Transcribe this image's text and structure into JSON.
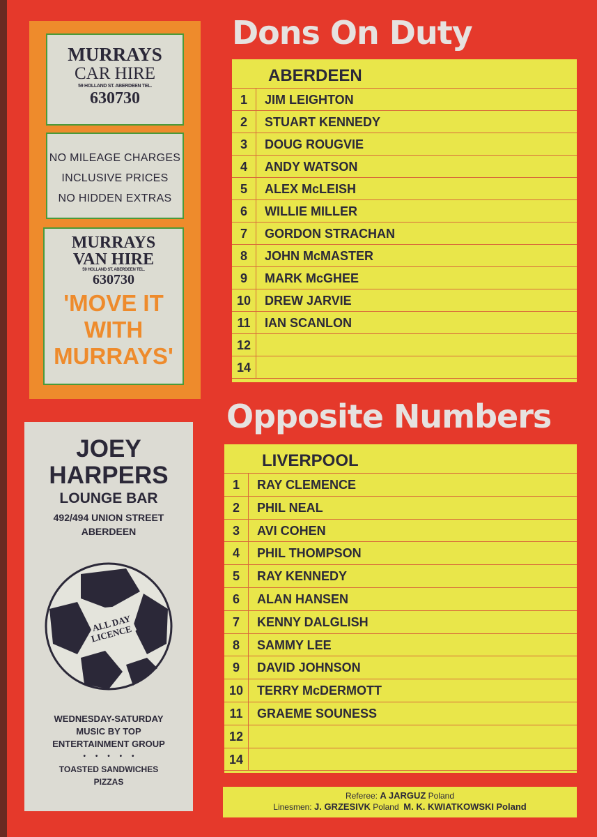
{
  "murrays_ad": {
    "car_title": "MURRAYS",
    "car_sub": "CAR HIRE",
    "address": "59 HOLLAND ST. ABERDEEN TEL.",
    "phone": "630730",
    "features": [
      "NO MILEAGE CHARGES",
      "INCLUSIVE PRICES",
      "NO HIDDEN EXTRAS"
    ],
    "van_title": "MURRAYS",
    "van_sub": "VAN HIRE",
    "van_address": "59 HOLLAND ST. ABERDEEN TEL.",
    "van_phone": "630730",
    "slogan": [
      "'MOVE IT",
      "WITH",
      "MURRAYS'"
    ]
  },
  "joey_ad": {
    "name1": "JOEY",
    "name2": "HARPERS",
    "type": "LOUNGE BAR",
    "address1": "492/494 UNION STREET",
    "address2": "ABERDEEN",
    "ball_text1": "ALL DAY",
    "ball_text2": "LICENCE",
    "lines": [
      "WEDNESDAY-SATURDAY",
      "MUSIC BY TOP",
      "ENTERTAINMENT GROUP"
    ],
    "dots": "•     •     •     •     •",
    "food": [
      "TOASTED SANDWICHES",
      "PIZZAS"
    ]
  },
  "home": {
    "heading": "Dons On Duty",
    "team": "ABERDEEN",
    "players": [
      {
        "n": "1",
        "name": "JIM LEIGHTON"
      },
      {
        "n": "2",
        "name": "STUART KENNEDY"
      },
      {
        "n": "3",
        "name": "DOUG ROUGVIE"
      },
      {
        "n": "4",
        "name": "ANDY WATSON"
      },
      {
        "n": "5",
        "name": "ALEX McLEISH"
      },
      {
        "n": "6",
        "name": "WILLIE MILLER"
      },
      {
        "n": "7",
        "name": "GORDON STRACHAN"
      },
      {
        "n": "8",
        "name": "JOHN McMASTER"
      },
      {
        "n": "9",
        "name": "MARK McGHEE"
      },
      {
        "n": "10",
        "name": "DREW JARVIE"
      },
      {
        "n": "11",
        "name": "IAN SCANLON"
      },
      {
        "n": "12",
        "name": ""
      },
      {
        "n": "14",
        "name": ""
      }
    ]
  },
  "away": {
    "heading": "Opposite Numbers",
    "team": "LIVERPOOL",
    "players": [
      {
        "n": "1",
        "name": "RAY CLEMENCE"
      },
      {
        "n": "2",
        "name": "PHIL NEAL"
      },
      {
        "n": "3",
        "name": "AVI COHEN"
      },
      {
        "n": "4",
        "name": "PHIL THOMPSON"
      },
      {
        "n": "5",
        "name": "RAY KENNEDY"
      },
      {
        "n": "6",
        "name": "ALAN HANSEN"
      },
      {
        "n": "7",
        "name": "KENNY DALGLISH"
      },
      {
        "n": "8",
        "name": "SAMMY LEE"
      },
      {
        "n": "9",
        "name": "DAVID JOHNSON"
      },
      {
        "n": "10",
        "name": "TERRY McDERMOTT"
      },
      {
        "n": "11",
        "name": "GRAEME SOUNESS"
      },
      {
        "n": "12",
        "name": ""
      },
      {
        "n": "14",
        "name": ""
      }
    ]
  },
  "officials": {
    "referee_label": "Referee:",
    "referee": "A JARGUZ",
    "referee_country": "Poland",
    "linesmen_label": "Linesmen:",
    "linesman1": "J. GRZESIVK",
    "linesman1_country": "Poland",
    "linesman2": "M. K. KWIATKOWSKI",
    "linesman2_country": "Poland"
  },
  "colors": {
    "background": "#e5392b",
    "orange": "#ee8b2c",
    "yellow": "#e9e64a",
    "card": "#dcdcd2"
  }
}
